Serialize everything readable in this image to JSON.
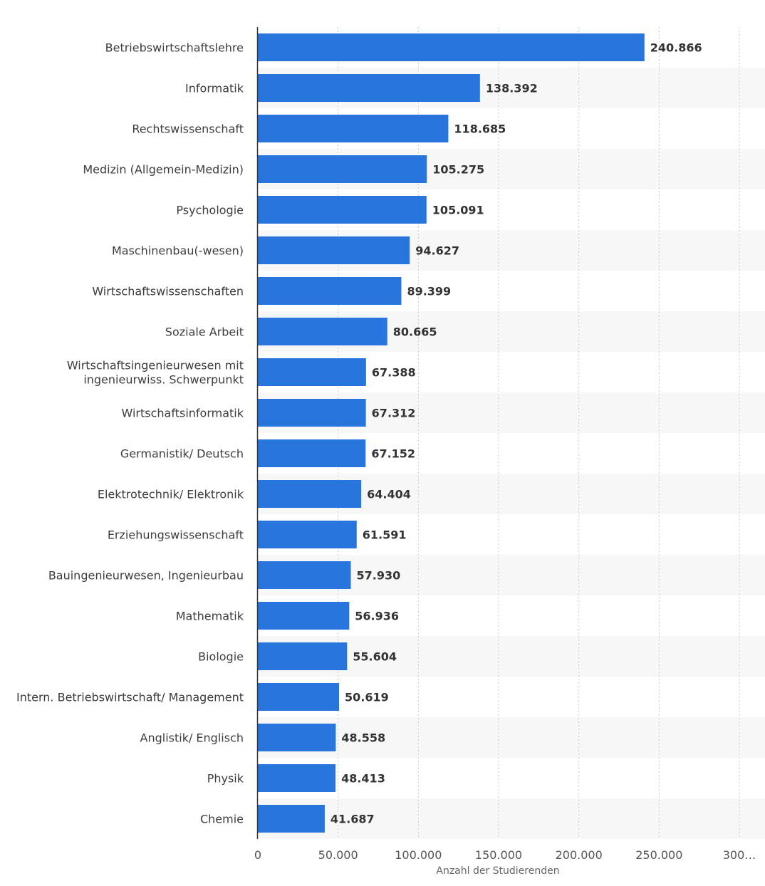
{
  "chart_data": {
    "type": "bar",
    "orientation": "horizontal",
    "categories": [
      "Betriebswirtschaftslehre",
      "Informatik",
      "Rechtswissenschaft",
      "Medizin (Allgemein-Medizin)",
      "Psychologie",
      "Maschinenbau(-wesen)",
      "Wirtschaftswissenschaften",
      "Soziale Arbeit",
      "Wirtschaftsingenieurwesen mit ingenieurwiss. Schwerpunkt",
      "Wirtschaftsinformatik",
      "Germanistik/ Deutsch",
      "Elektrotechnik/ Elektronik",
      "Erziehungswissenschaft",
      "Bauingenieurwesen, Ingenieurbau",
      "Mathematik",
      "Biologie",
      "Intern. Betriebswirtschaft/ Management",
      "Anglistik/ Englisch",
      "Physik",
      "Chemie"
    ],
    "category_label_lines": [
      [
        "Betriebswirtschaftslehre"
      ],
      [
        "Informatik"
      ],
      [
        "Rechtswissenschaft"
      ],
      [
        "Medizin (Allgemein-Medizin)"
      ],
      [
        "Psychologie"
      ],
      [
        "Maschinenbau(-wesen)"
      ],
      [
        "Wirtschaftswissenschaften"
      ],
      [
        "Soziale Arbeit"
      ],
      [
        "Wirtschaftsingenieurwesen mit",
        "ingenieurwiss. Schwerpunkt"
      ],
      [
        "Wirtschaftsinformatik"
      ],
      [
        "Germanistik/ Deutsch"
      ],
      [
        "Elektrotechnik/ Elektronik"
      ],
      [
        "Erziehungswissenschaft"
      ],
      [
        "Bauingenieurwesen, Ingenieurbau"
      ],
      [
        "Mathematik"
      ],
      [
        "Biologie"
      ],
      [
        "Intern. Betriebswirtschaft/ Management"
      ],
      [
        "Anglistik/ Englisch"
      ],
      [
        "Physik"
      ],
      [
        "Chemie"
      ]
    ],
    "values": [
      240866,
      138392,
      118685,
      105275,
      105091,
      94627,
      89399,
      80665,
      67388,
      67312,
      67152,
      64404,
      61591,
      57930,
      56936,
      55604,
      50619,
      48558,
      48413,
      41687
    ],
    "value_labels": [
      "240.866",
      "138.392",
      "118.685",
      "105.275",
      "105.091",
      "94.627",
      "89.399",
      "80.665",
      "67.388",
      "67.312",
      "67.152",
      "64.404",
      "61.591",
      "57.930",
      "56.936",
      "55.604",
      "50.619",
      "48.558",
      "48.413",
      "41.687"
    ],
    "x_ticks": [
      0,
      50000,
      100000,
      150000,
      200000,
      250000,
      300000
    ],
    "x_tick_labels": [
      "0",
      "50.000",
      "100.000",
      "150.000",
      "200.000",
      "250.000",
      "300…"
    ],
    "xlim": [
      0,
      300000
    ],
    "xlabel": "Anzahl der Studierenden",
    "ylabel": "",
    "title": "",
    "grid": true,
    "bar_color": "#2876dd",
    "band_color": "#f7f7f7"
  }
}
